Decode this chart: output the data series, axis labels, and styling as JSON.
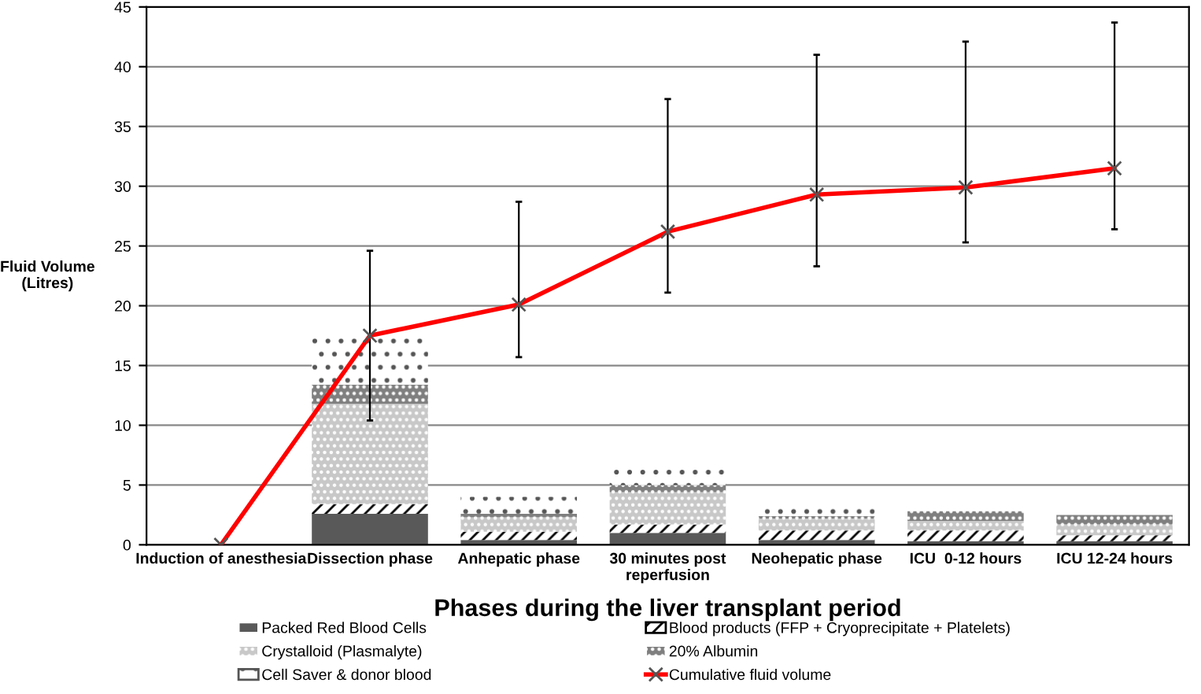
{
  "chart_data": {
    "type": "bar",
    "stacked": true,
    "xlabel": "Phases during the liver transplant period",
    "ylabel": "Fluid Volume\n(Litres)",
    "categories": [
      "Induction of anesthesia",
      "Dissection phase",
      "Anhepatic phase",
      "30 minutes post\nreperfusion",
      "Neohepatic phase",
      "ICU  0-12 hours",
      "ICU 12-24 hours"
    ],
    "series": [
      {
        "name": "Packed Red Blood Cells",
        "color": "#595959",
        "values": [
          0,
          2.6,
          0.4,
          1.0,
          0.4,
          0.3,
          0.3
        ]
      },
      {
        "name": "Blood products (FFP + Cryoprecipitate + Platelets)",
        "color": "#000000",
        "values": [
          0,
          0.8,
          0.7,
          0.7,
          0.8,
          0.9,
          0.5
        ]
      },
      {
        "name": "Crystalloid (Plasmalyte)",
        "color": "#c8c8c8",
        "values": [
          0,
          8.4,
          1.2,
          2.7,
          1.0,
          0.8,
          0.9
        ]
      },
      {
        "name": "20% Albumin",
        "color": "#7f7f7f",
        "values": [
          0,
          1.6,
          0.3,
          0.6,
          0.2,
          0.8,
          0.8
        ]
      },
      {
        "name": "Cell Saver & donor blood",
        "color": "#ffffff",
        "values": [
          0,
          3.9,
          1.4,
          1.4,
          0.8,
          0,
          0
        ]
      },
      {
        "name": "Cumulative fluid volume",
        "type": "line",
        "color": "#ff0000",
        "marker": "cross",
        "values": [
          0,
          17.5,
          20.1,
          26.2,
          29.3,
          29.9,
          31.5
        ],
        "errors": [
          null,
          [
            10.4,
            24.6
          ],
          [
            15.7,
            28.7
          ],
          [
            21.1,
            37.3
          ],
          [
            23.3,
            41.0
          ],
          [
            25.3,
            42.1
          ],
          [
            26.4,
            43.7
          ]
        ]
      }
    ],
    "ylim": [
      0,
      45
    ],
    "yticks": [
      0,
      5,
      10,
      15,
      20,
      25,
      30,
      35,
      40,
      45
    ],
    "grid": "y",
    "legend": "bottom"
  }
}
